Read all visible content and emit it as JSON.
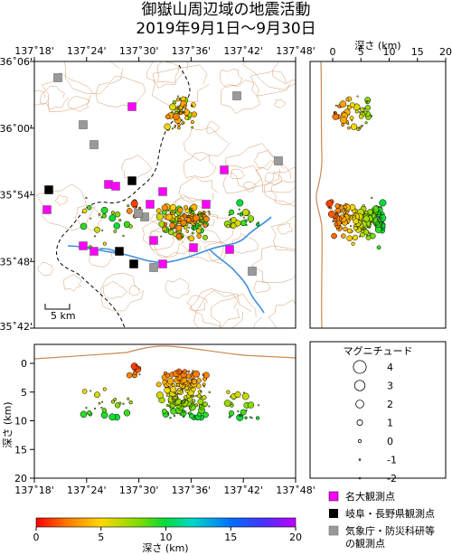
{
  "title": {
    "line1": "御嶽山周辺域の地震活動",
    "line2": "2019年9月1日〜9月30日"
  },
  "map": {
    "lon_ticks": [
      "137˚18'",
      "137˚24'",
      "137˚30'",
      "137˚36'",
      "137˚42'",
      "137˚48'"
    ],
    "lat_ticks": [
      "36˚06'",
      "36˚00'",
      "35˚54'",
      "35˚48'",
      "35˚42'"
    ],
    "scale_label": "5 km"
  },
  "depth_section_right": {
    "title": "深さ (km)",
    "ticks": [
      "0",
      "5",
      "10",
      "15",
      "20"
    ]
  },
  "depth_section_bottom": {
    "ylabel": "深さ (km)",
    "ticks": [
      "0",
      "5",
      "10",
      "15",
      "20"
    ]
  },
  "magnitude_legend": {
    "title": "マグニチュード",
    "items": [
      {
        "label": "4",
        "mag": 4
      },
      {
        "label": "3",
        "mag": 3
      },
      {
        "label": "2",
        "mag": 2
      },
      {
        "label": "1",
        "mag": 1
      },
      {
        "label": "0",
        "mag": 0
      },
      {
        "label": "-1",
        "mag": -1
      },
      {
        "label": "-2",
        "mag": -2
      }
    ]
  },
  "station_legend": [
    {
      "label": "名大観測点",
      "color": "#ff00ff"
    },
    {
      "label": "岐阜・長野県観測点",
      "color": "#000000"
    },
    {
      "label": "気象庁・防災科研等",
      "label2": "の観測点",
      "color": "#999999"
    }
  ],
  "colorbar": {
    "ticks": [
      "0",
      "5",
      "10",
      "15",
      "20"
    ],
    "label": "深さ (km)"
  },
  "colors": {
    "river": "#3f8fdc",
    "contour": "#c98a55",
    "topo_line": "#c98a55"
  }
}
